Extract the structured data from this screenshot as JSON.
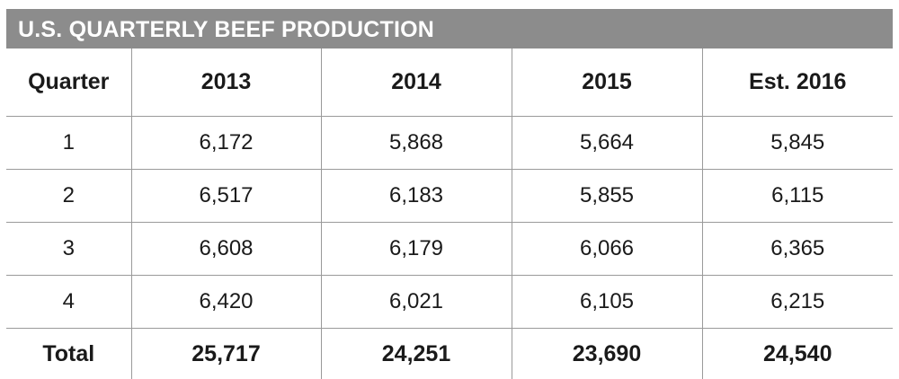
{
  "chart_data": {
    "type": "table",
    "title": "U.S. QUARTERLY BEEF PRODUCTION",
    "columns": [
      "Quarter",
      "2013",
      "2014",
      "2015",
      "Est. 2016"
    ],
    "rows": [
      [
        "1",
        "6,172",
        "5,868",
        "5,664",
        "5,845"
      ],
      [
        "2",
        "6,517",
        "6,183",
        "5,855",
        "6,115"
      ],
      [
        "3",
        "6,608",
        "6,179",
        "6,066",
        "6,365"
      ],
      [
        "4",
        "6,420",
        "6,021",
        "6,105",
        "6,215"
      ]
    ],
    "total_row": [
      "Total",
      "25,717",
      "24,251",
      "23,690",
      "24,540"
    ]
  },
  "colors": {
    "title_bar": "#8c8c8c",
    "title_text": "#ffffff",
    "grid_lines": "#9a9a9a"
  }
}
